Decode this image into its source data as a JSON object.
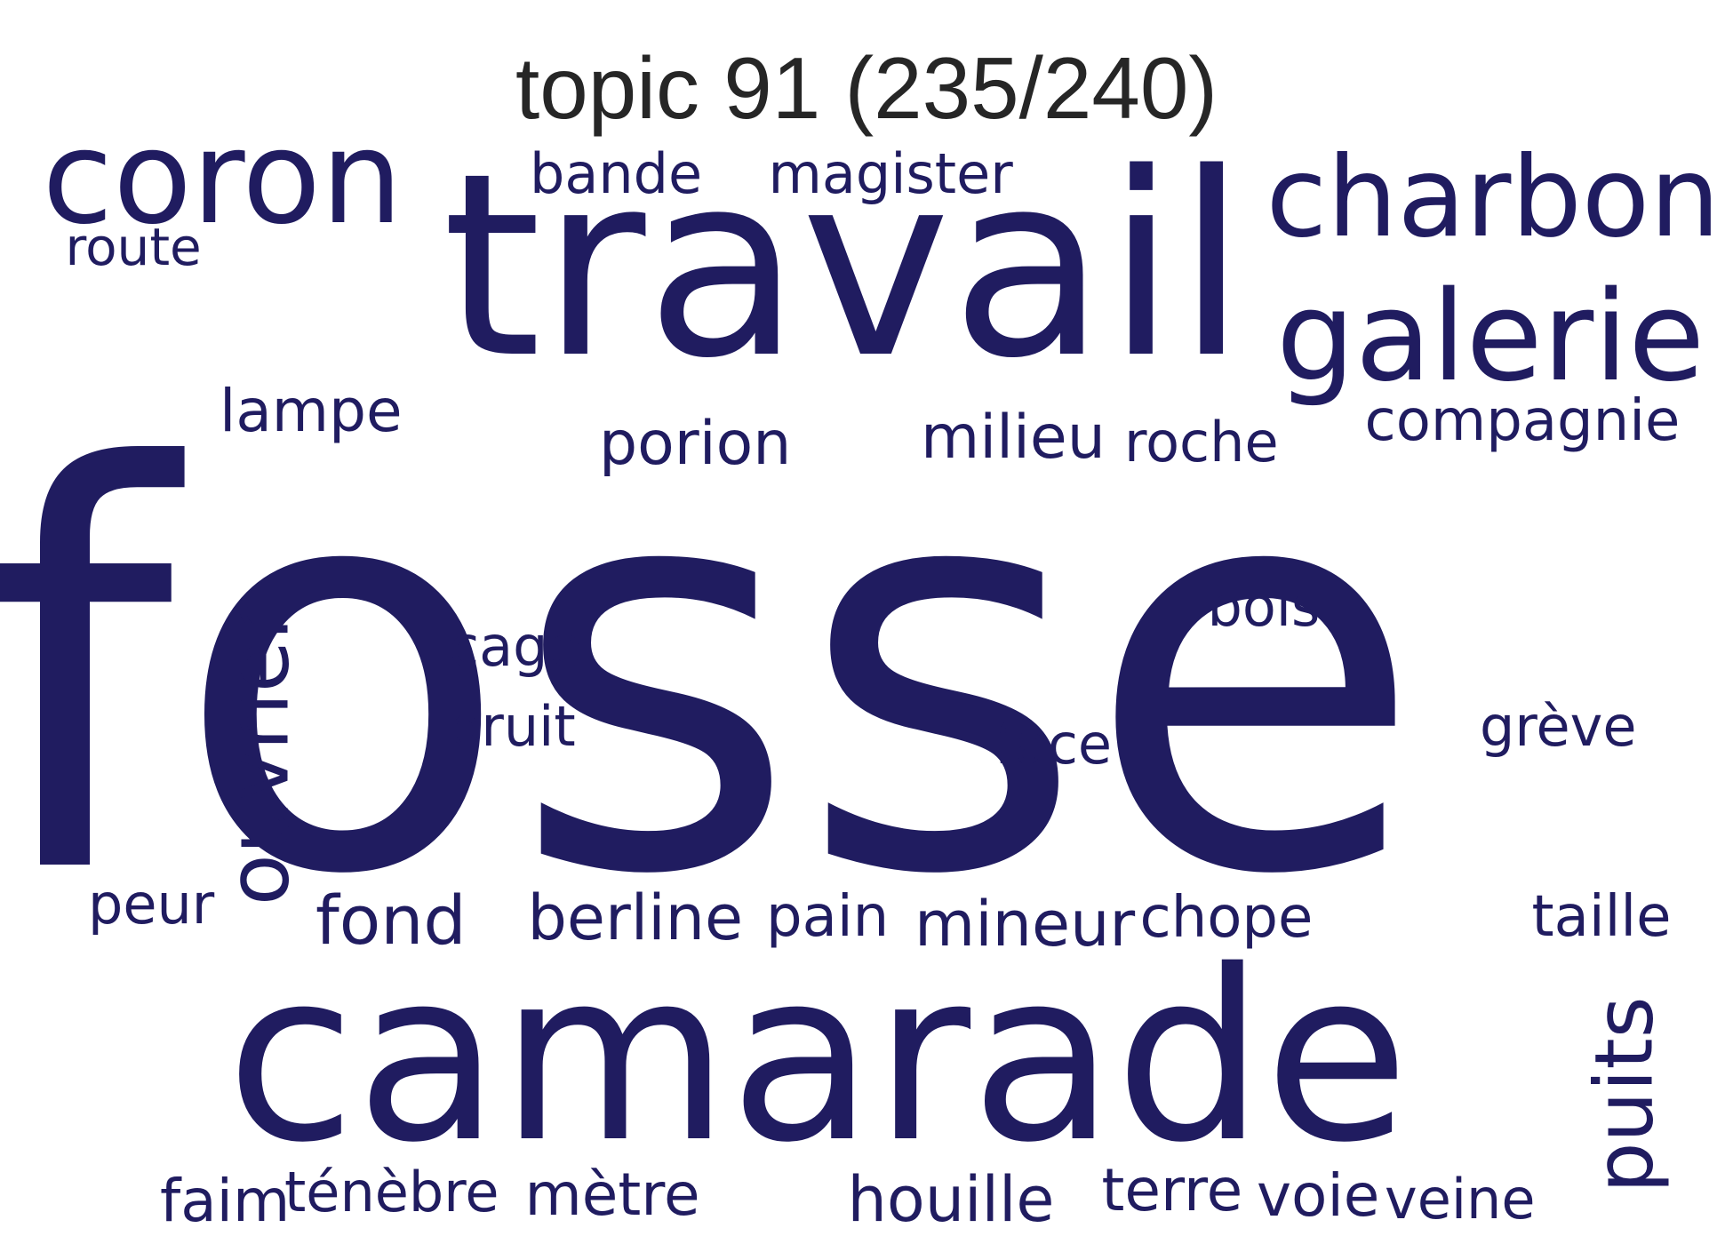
{
  "title": "topic 91 (235/240)",
  "word_color": "#201c60",
  "title_color": "#262626",
  "words": [
    {
      "text": "fosse",
      "orientation": "horizontal"
    },
    {
      "text": "travail",
      "orientation": "horizontal"
    },
    {
      "text": "camarade",
      "orientation": "horizontal"
    },
    {
      "text": "coron",
      "orientation": "horizontal"
    },
    {
      "text": "charbon",
      "orientation": "horizontal"
    },
    {
      "text": "galerie",
      "orientation": "horizontal"
    },
    {
      "text": "ouvrier",
      "orientation": "vertical"
    },
    {
      "text": "puits",
      "orientation": "vertical"
    },
    {
      "text": "bande",
      "orientation": "horizontal"
    },
    {
      "text": "magister",
      "orientation": "horizontal"
    },
    {
      "text": "route",
      "orientation": "horizontal"
    },
    {
      "text": "lampe",
      "orientation": "horizontal"
    },
    {
      "text": "porion",
      "orientation": "horizontal"
    },
    {
      "text": "milieu",
      "orientation": "horizontal"
    },
    {
      "text": "roche",
      "orientation": "horizontal"
    },
    {
      "text": "compagnie",
      "orientation": "horizontal"
    },
    {
      "text": "bois",
      "orientation": "horizontal"
    },
    {
      "text": "cage",
      "orientation": "horizontal"
    },
    {
      "text": "bruit",
      "orientation": "horizontal"
    },
    {
      "text": "face",
      "orientation": "horizontal"
    },
    {
      "text": "grève",
      "orientation": "horizontal"
    },
    {
      "text": "peur",
      "orientation": "horizontal"
    },
    {
      "text": "fond",
      "orientation": "horizontal"
    },
    {
      "text": "berline",
      "orientation": "horizontal"
    },
    {
      "text": "pain",
      "orientation": "horizontal"
    },
    {
      "text": "mineur",
      "orientation": "horizontal"
    },
    {
      "text": "chope",
      "orientation": "horizontal"
    },
    {
      "text": "taille",
      "orientation": "horizontal"
    },
    {
      "text": "faim",
      "orientation": "horizontal"
    },
    {
      "text": "ténèbre",
      "orientation": "horizontal"
    },
    {
      "text": "mètre",
      "orientation": "horizontal"
    },
    {
      "text": "houille",
      "orientation": "horizontal"
    },
    {
      "text": "terre",
      "orientation": "horizontal"
    },
    {
      "text": "voie",
      "orientation": "horizontal"
    },
    {
      "text": "veine",
      "orientation": "horizontal"
    }
  ]
}
